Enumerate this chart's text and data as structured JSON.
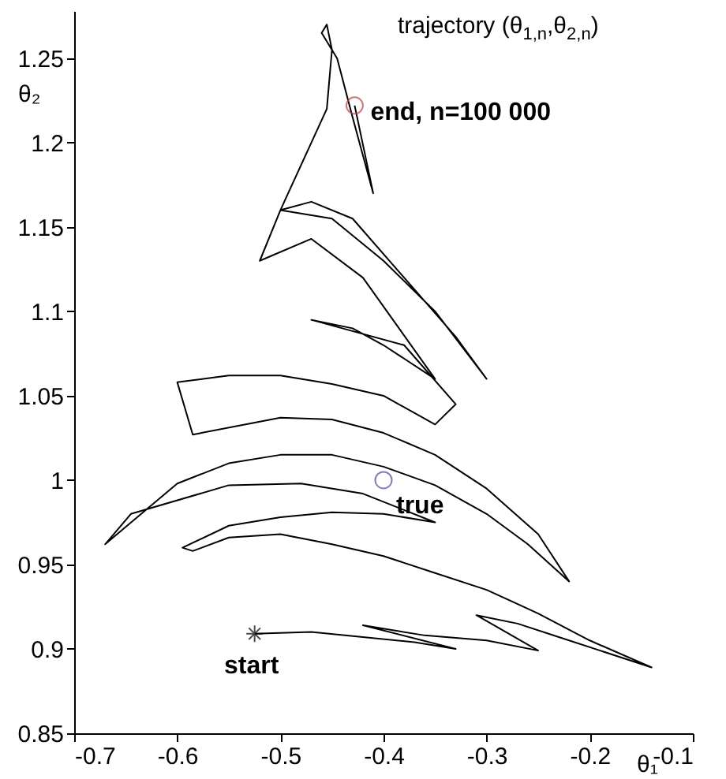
{
  "chart_data": {
    "type": "line",
    "xlabel": "θ₁",
    "ylabel": "θ₂",
    "xlim": [
      -0.7,
      -0.1
    ],
    "ylim": [
      0.85,
      1.278
    ],
    "xticks": [
      -0.7,
      -0.6,
      -0.5,
      -0.4,
      -0.3,
      -0.2,
      -0.1
    ],
    "yticks": [
      0.85,
      0.9,
      0.95,
      1,
      1.05,
      1.1,
      1.15,
      1.2,
      1.25
    ],
    "grid": false,
    "series": [
      {
        "type": "line",
        "color": "#000000",
        "marker": "none",
        "line_style": "solid",
        "x": [
          -0.525,
          -0.47,
          -0.42,
          -0.37,
          -0.33,
          -0.42,
          -0.36,
          -0.3,
          -0.25,
          -0.31,
          -0.27,
          -0.23,
          -0.14,
          -0.2,
          -0.25,
          -0.3,
          -0.35,
          -0.4,
          -0.45,
          -0.5,
          -0.55,
          -0.585,
          -0.595,
          -0.55,
          -0.5,
          -0.45,
          -0.4,
          -0.35,
          -0.42,
          -0.48,
          -0.55,
          -0.645,
          -0.67,
          -0.6,
          -0.55,
          -0.5,
          -0.45,
          -0.4,
          -0.35,
          -0.3,
          -0.26,
          -0.22,
          -0.25,
          -0.3,
          -0.35,
          -0.4,
          -0.45,
          -0.5,
          -0.585,
          -0.6,
          -0.55,
          -0.5,
          -0.45,
          -0.4,
          -0.35,
          -0.33,
          -0.38,
          -0.47,
          -0.43,
          -0.4,
          -0.35,
          -0.42,
          -0.47,
          -0.52,
          -0.5,
          -0.45,
          -0.4,
          -0.35,
          -0.3,
          -0.33,
          -0.38,
          -0.43,
          -0.47,
          -0.5,
          -0.455,
          -0.45,
          -0.455,
          -0.46,
          -0.445,
          -0.43,
          -0.41,
          -0.428
        ],
        "values": [
          0.909,
          0.91,
          0.907,
          0.904,
          0.9,
          0.914,
          0.908,
          0.905,
          0.899,
          0.92,
          0.915,
          0.907,
          0.889,
          0.905,
          0.921,
          0.935,
          0.945,
          0.955,
          0.962,
          0.968,
          0.966,
          0.958,
          0.96,
          0.973,
          0.978,
          0.981,
          0.98,
          0.975,
          0.992,
          0.998,
          0.997,
          0.98,
          0.962,
          0.998,
          1.01,
          1.015,
          1.015,
          1.008,
          0.997,
          0.98,
          0.962,
          0.94,
          0.968,
          0.995,
          1.015,
          1.028,
          1.036,
          1.037,
          1.027,
          1.058,
          1.062,
          1.062,
          1.057,
          1.05,
          1.033,
          1.045,
          1.08,
          1.095,
          1.09,
          1.08,
          1.06,
          1.12,
          1.143,
          1.13,
          1.16,
          1.155,
          1.13,
          1.1,
          1.06,
          1.085,
          1.12,
          1.155,
          1.165,
          1.16,
          1.22,
          1.255,
          1.27,
          1.265,
          1.25,
          1.215,
          1.17,
          1.222
        ]
      },
      {
        "type": "scatter",
        "color": "#000000",
        "marker": "cross",
        "x": [
          -0.525
        ],
        "values": [
          0.909
        ]
      },
      {
        "type": "scatter",
        "color": "#4a4a9a",
        "marker": "circle",
        "x": [
          -0.4
        ],
        "values": [
          1.0
        ]
      },
      {
        "type": "scatter",
        "color": "#c04040",
        "marker": "circle",
        "x": [
          -0.428
        ],
        "values": [
          1.222
        ]
      }
    ],
    "annotations": [
      "trajectory (θ$_{1,n}$,θ$_{2,n}$)",
      {
        "text": "start",
        "x": -0.525,
        "y": 0.909
      },
      {
        "text": "true",
        "x": -0.4,
        "y": 1.0
      },
      {
        "text": "end, n=100 000",
        "x": -0.428,
        "y": 1.222
      }
    ]
  }
}
